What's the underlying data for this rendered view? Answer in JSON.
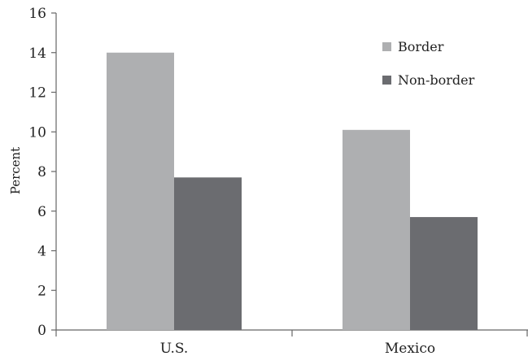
{
  "chart_data": {
    "type": "bar",
    "categories": [
      "U.S.",
      "Mexico"
    ],
    "series": [
      {
        "name": "Border",
        "values": [
          14.0,
          10.1
        ],
        "color": "#aeafb1"
      },
      {
        "name": "Non-border",
        "values": [
          7.7,
          5.7
        ],
        "color": "#6b6c70"
      }
    ],
    "ylabel": "Percent",
    "xlabel": "",
    "ylim": [
      0,
      16
    ],
    "yticks": [
      0,
      2,
      4,
      6,
      8,
      10,
      12,
      14,
      16
    ],
    "grid": false,
    "legend_position": "top-right"
  }
}
